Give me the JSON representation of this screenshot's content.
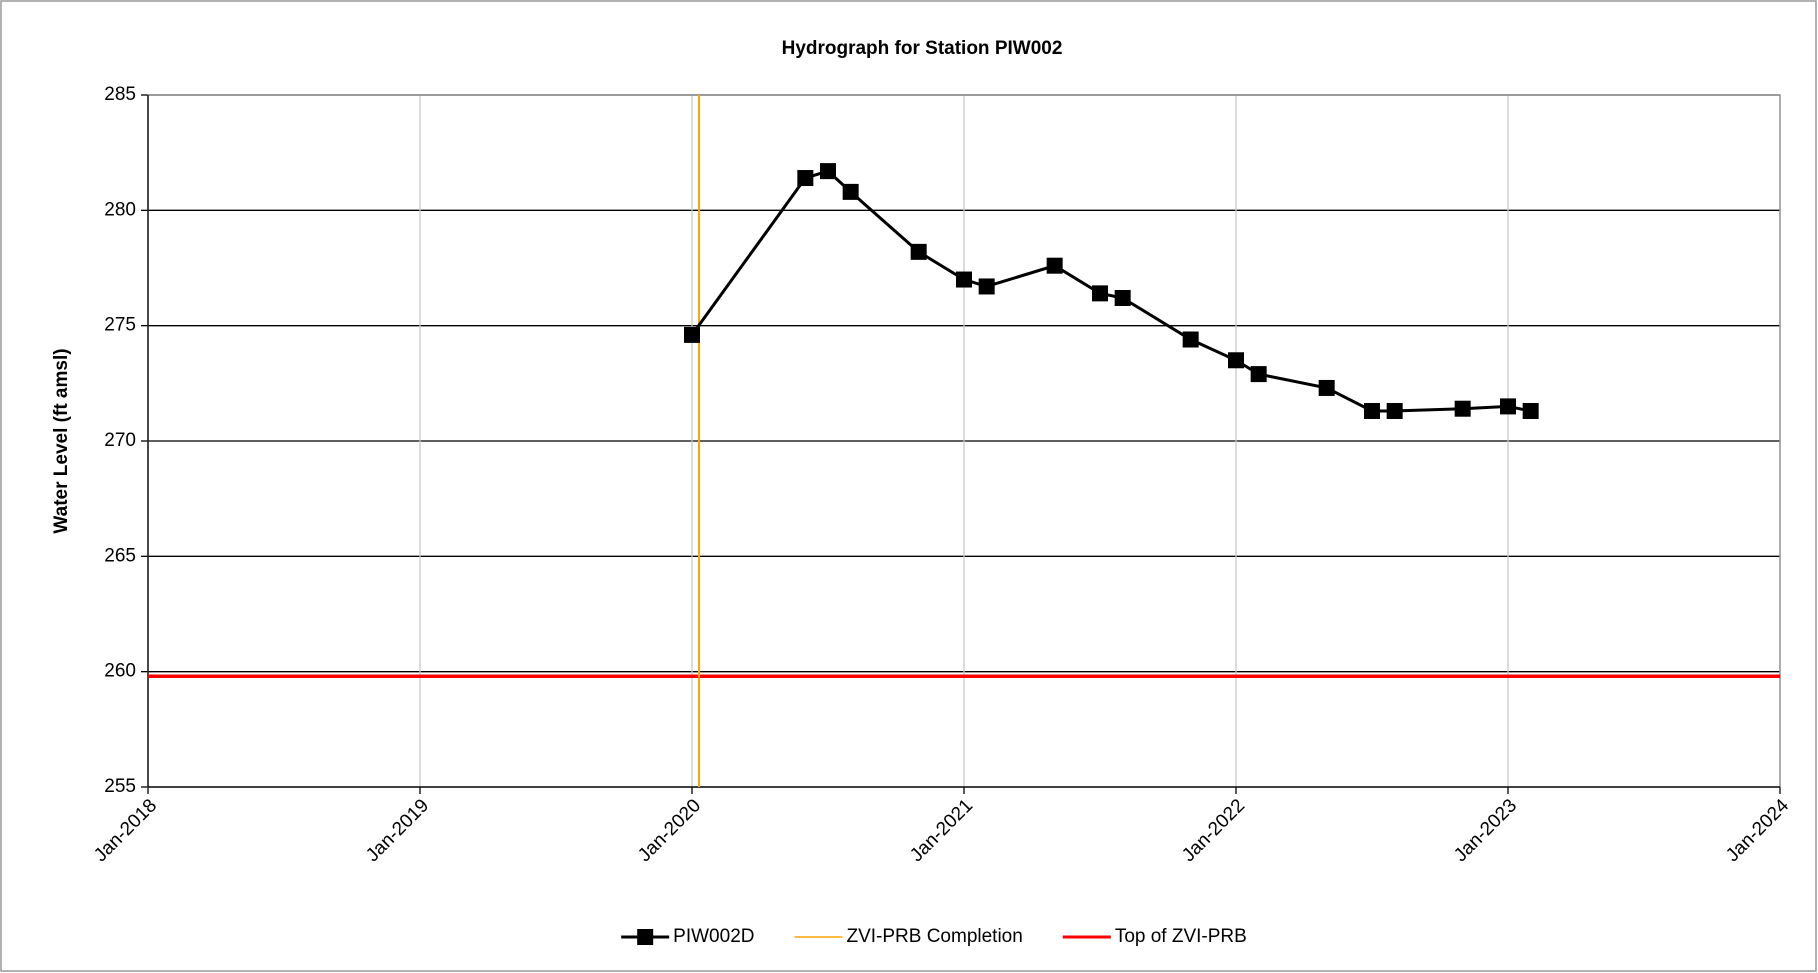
{
  "chart_data": {
    "type": "line",
    "title": "Hydrograph for Station PIW002",
    "y_label": "Water Level (ft amsl)",
    "x": [
      "Jan-2020",
      "Jun-2020",
      "Jul-2020",
      "Aug-2020",
      "Nov-2020",
      "Jan-2021",
      "Feb-2021",
      "May-2021",
      "Jul-2021",
      "Aug-2021",
      "Nov-2021",
      "Jan-2022",
      "Feb-2022",
      "May-2022",
      "Jul-2022",
      "Aug-2022",
      "Nov-2022",
      "Jan-2023",
      "Feb-2023"
    ],
    "series": [
      {
        "name": "PIW002D",
        "color": "#000000",
        "marker": "square",
        "values": [
          274.6,
          281.4,
          281.7,
          280.8,
          278.2,
          277.0,
          276.7,
          277.6,
          276.4,
          276.2,
          274.4,
          273.5,
          272.9,
          272.3,
          271.3,
          271.3,
          271.4,
          271.5,
          271.3
        ]
      }
    ],
    "vlines": [
      {
        "name": "ZVI-PRB Completion",
        "x": "Jan-2020",
        "color": "#ffa500"
      }
    ],
    "hlines": [
      {
        "name": "Top of ZVI-PRB",
        "y": 259.8,
        "color": "#ff0000"
      }
    ],
    "xlim": [
      "Jan-2018",
      "Jan-2024"
    ],
    "xticks": [
      "Jan-2018",
      "Jan-2019",
      "Jan-2020",
      "Jan-2021",
      "Jan-2022",
      "Jan-2023",
      "Jan-2024"
    ],
    "ylim": [
      255,
      285
    ],
    "yticks": [
      255,
      260,
      265,
      270,
      275,
      280,
      285
    ],
    "grid": true,
    "legend": "bottom"
  }
}
